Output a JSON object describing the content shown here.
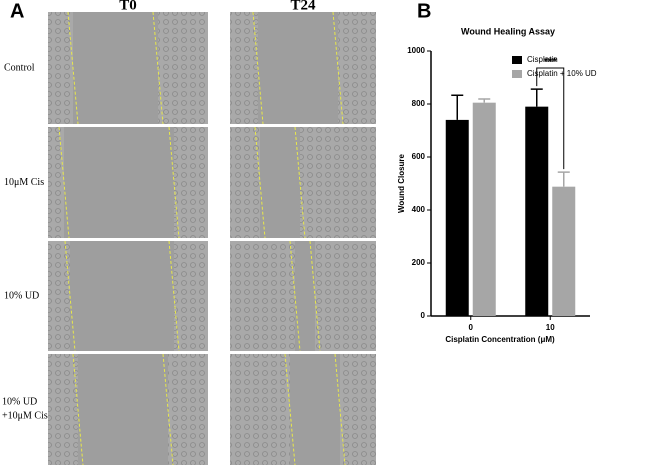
{
  "panel_a": {
    "label": "A",
    "columns": [
      "T0",
      "T24"
    ],
    "rows": [
      "Control",
      "10μM Cis",
      "10% UD",
      "10% UD +10μM Cis"
    ]
  },
  "chart_data": {
    "type": "bar",
    "panel_label": "B",
    "title": "Wound Healing Assay",
    "x_label": "Cisplatin Concentration (μM)",
    "y_label": "Wound Closure",
    "categories": [
      "0",
      "10"
    ],
    "series": [
      {
        "name": "Cisplatin",
        "color": "#000000",
        "values": [
          740,
          790
        ],
        "errors": [
          93,
          66
        ]
      },
      {
        "name": "Cisplatin + 10% UD",
        "color": "#a6a6a6",
        "values": [
          805,
          488
        ],
        "errors": [
          14,
          55
        ]
      }
    ],
    "ylim": [
      0,
      1000
    ],
    "yticks": [
      0,
      200,
      400,
      600,
      800,
      1000
    ],
    "legend": "upper right",
    "annotations": [
      {
        "text": "***",
        "category": "10"
      }
    ]
  }
}
